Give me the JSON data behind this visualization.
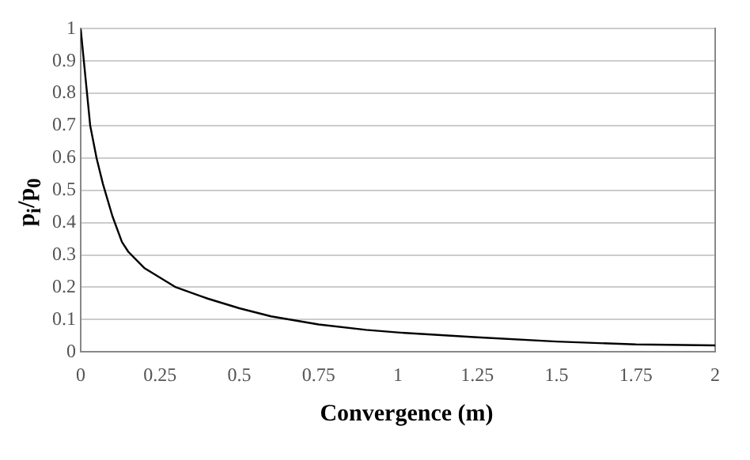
{
  "chart_data": {
    "type": "line",
    "xlabel": "Convergence (m)",
    "ylabel": "p$_{i}$/p$_{0}$",
    "series": [
      {
        "color": "#000000",
        "x": [
          0,
          0.01,
          0.02,
          0.03,
          0.05,
          0.07,
          0.1,
          0.13,
          0.15,
          0.2,
          0.25,
          0.3,
          0.4,
          0.5,
          0.6,
          0.75,
          0.9,
          1,
          1.25,
          1.5,
          1.75,
          2
        ],
        "values": [
          1,
          0.9,
          0.8,
          0.7,
          0.6,
          0.52,
          0.42,
          0.34,
          0.31,
          0.26,
          0.23,
          0.2,
          0.165,
          0.135,
          0.11,
          0.085,
          0.068,
          0.06,
          0.045,
          0.032,
          0.023,
          0.02
        ]
      }
    ],
    "xlim": [
      0,
      2
    ],
    "xticks": [
      0,
      0.25,
      0.5,
      0.75,
      1,
      1.25,
      1.5,
      1.75,
      2
    ],
    "ylim": [
      0,
      1
    ],
    "yticks": [
      0,
      0.1,
      0.2,
      0.3,
      0.4,
      0.5,
      0.6,
      0.7,
      0.8,
      0.9,
      1
    ],
    "grid": "y",
    "legend": false,
    "marker": "none",
    "line_style": "solid"
  }
}
